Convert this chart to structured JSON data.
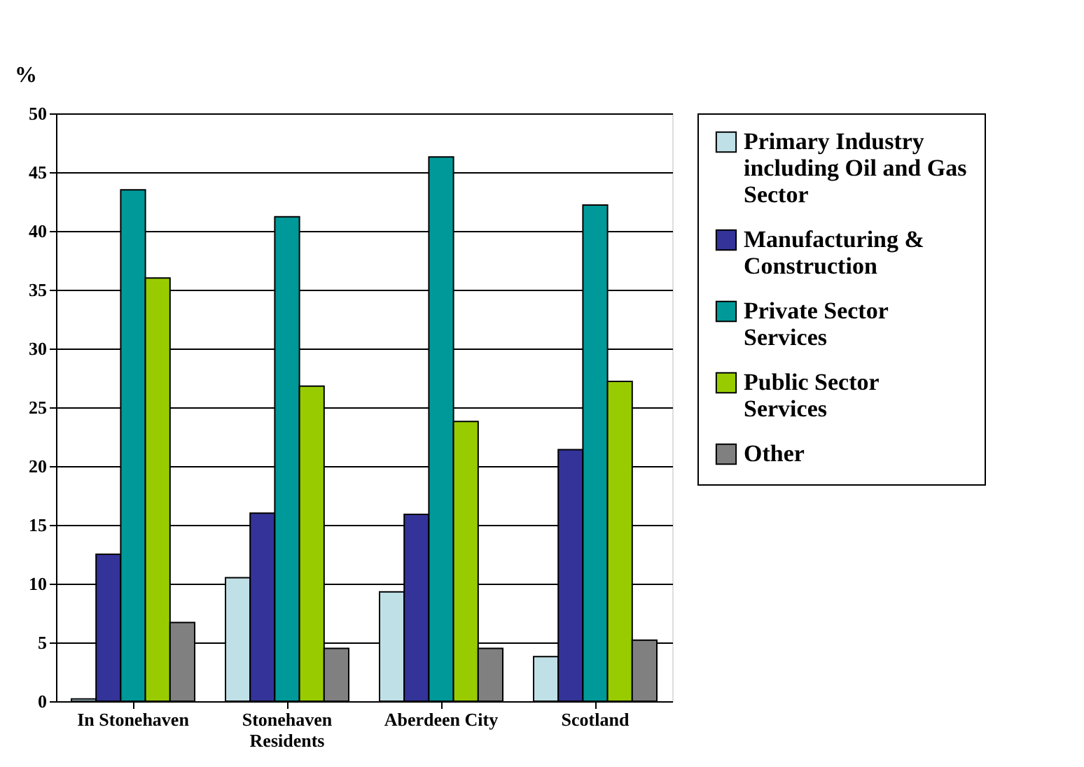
{
  "chart_data": {
    "type": "bar",
    "ylabel": "%",
    "categories": [
      "In Stonehaven",
      "Stonehaven Residents",
      "Aberdeen City",
      "Scotland"
    ],
    "series": [
      {
        "name": "Primary Industry including Oil and Gas Sector",
        "color": "#bfe0e6",
        "values": [
          0.2,
          10.5,
          9.3,
          3.8
        ]
      },
      {
        "name": "Manufacturing & Construction",
        "color": "#333399",
        "values": [
          12.5,
          16,
          15.9,
          21.4
        ]
      },
      {
        "name": "Private Sector Services",
        "color": "#009999",
        "values": [
          43.5,
          41.2,
          46.3,
          42.2
        ]
      },
      {
        "name": "Public  Sector Services",
        "color": "#99cc00",
        "values": [
          36,
          26.8,
          23.8,
          27.2
        ]
      },
      {
        "name": "Other",
        "color": "#808080",
        "values": [
          6.7,
          4.5,
          4.5,
          5.2
        ]
      }
    ],
    "ylim": [
      0,
      50
    ],
    "yticks": [
      0,
      5,
      10,
      15,
      20,
      25,
      30,
      35,
      40,
      45,
      50
    ],
    "grid": "y",
    "legend": "right"
  }
}
